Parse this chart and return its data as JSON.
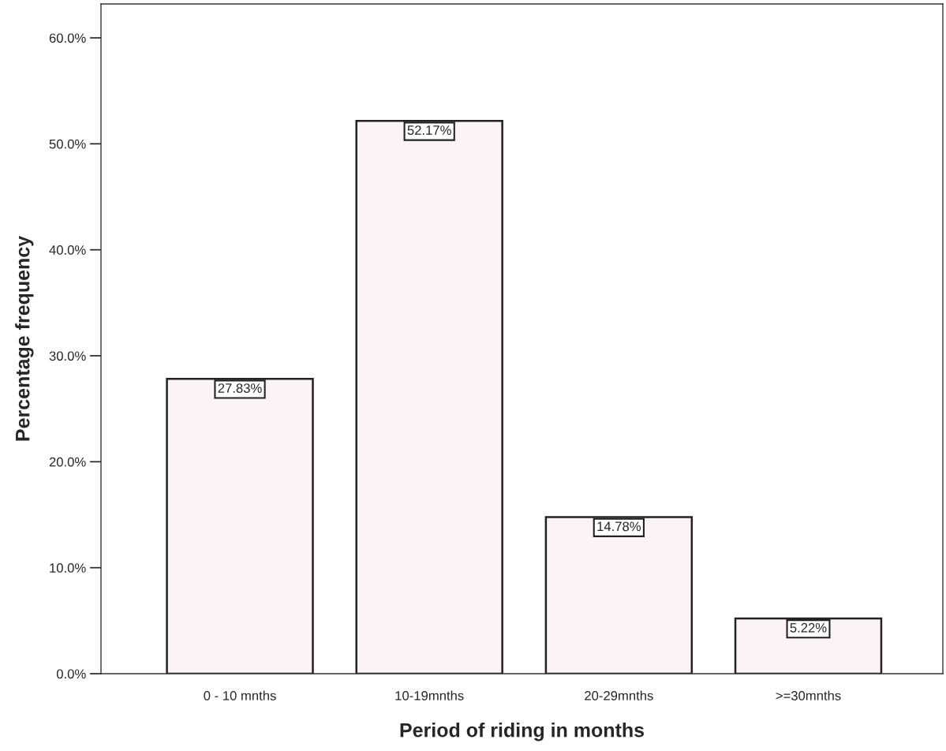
{
  "chart_data": {
    "type": "bar",
    "xlabel": "Period of riding in months",
    "ylabel": "Percentage frequency",
    "categories": [
      "0 - 10 mnths",
      "10-19mnths",
      "20-29mnths",
      ">=30mnths"
    ],
    "values": [
      27.83,
      52.17,
      14.78,
      5.22
    ],
    "value_labels": [
      "27.83%",
      "52.17%",
      "14.78%",
      "5.22%"
    ],
    "color": "#fbf3f6",
    "ylim": [
      0,
      63.2
    ],
    "yticks": [
      {
        "value": 0,
        "label": "0.0%"
      },
      {
        "value": 10,
        "label": "10.0%"
      },
      {
        "value": 20,
        "label": "20.0%"
      },
      {
        "value": 30,
        "label": "30.0%"
      },
      {
        "value": 40,
        "label": "40.0%"
      },
      {
        "value": 50,
        "label": "50.0%"
      },
      {
        "value": 60,
        "label": "60.0%"
      }
    ],
    "grid": false,
    "legend": false
  }
}
